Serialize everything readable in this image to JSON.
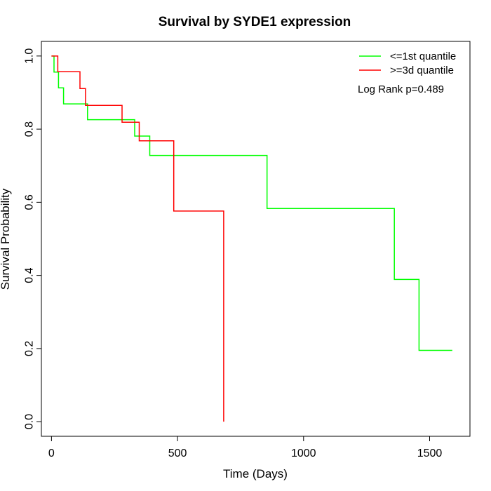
{
  "chart_data": {
    "type": "line",
    "title": "Survival by SYDE1 expression",
    "xlabel": "Time (Days)",
    "ylabel": "Survival Probability",
    "xlim": [
      -40,
      1660
    ],
    "ylim": [
      -0.04,
      1.04
    ],
    "x_ticks": [
      0,
      500,
      1000,
      1500
    ],
    "x_tick_labels": [
      "0",
      "500",
      "1000",
      "1500"
    ],
    "y_ticks": [
      0.0,
      0.2,
      0.4,
      0.6,
      0.8,
      1.0
    ],
    "y_tick_labels": [
      "0.0",
      "0.2",
      "0.4",
      "0.6",
      "0.8",
      "1.0"
    ],
    "grid": false,
    "legend_position": "top-right",
    "annotation": "Log Rank p=0.489",
    "series": [
      {
        "name": "<=1st quantile",
        "color": "#00ff00",
        "x": [
          0,
          10,
          10,
          28,
          28,
          48,
          48,
          143,
          143,
          330,
          330,
          390,
          390,
          855,
          855,
          1360,
          1360,
          1458,
          1458,
          1590
        ],
        "y": [
          1.0,
          1.0,
          0.956,
          0.956,
          0.913,
          0.913,
          0.869,
          0.869,
          0.826,
          0.826,
          0.781,
          0.781,
          0.728,
          0.728,
          0.583,
          0.583,
          0.389,
          0.389,
          0.195,
          0.195
        ]
      },
      {
        "name": ">=3d quantile",
        "color": "#ff0000",
        "x": [
          0,
          25,
          25,
          113,
          113,
          135,
          135,
          280,
          280,
          348,
          348,
          485,
          485,
          683,
          683
        ],
        "y": [
          1.0,
          1.0,
          0.957,
          0.957,
          0.911,
          0.911,
          0.865,
          0.865,
          0.819,
          0.819,
          0.768,
          0.768,
          0.576,
          0.576,
          0.0
        ]
      }
    ]
  }
}
